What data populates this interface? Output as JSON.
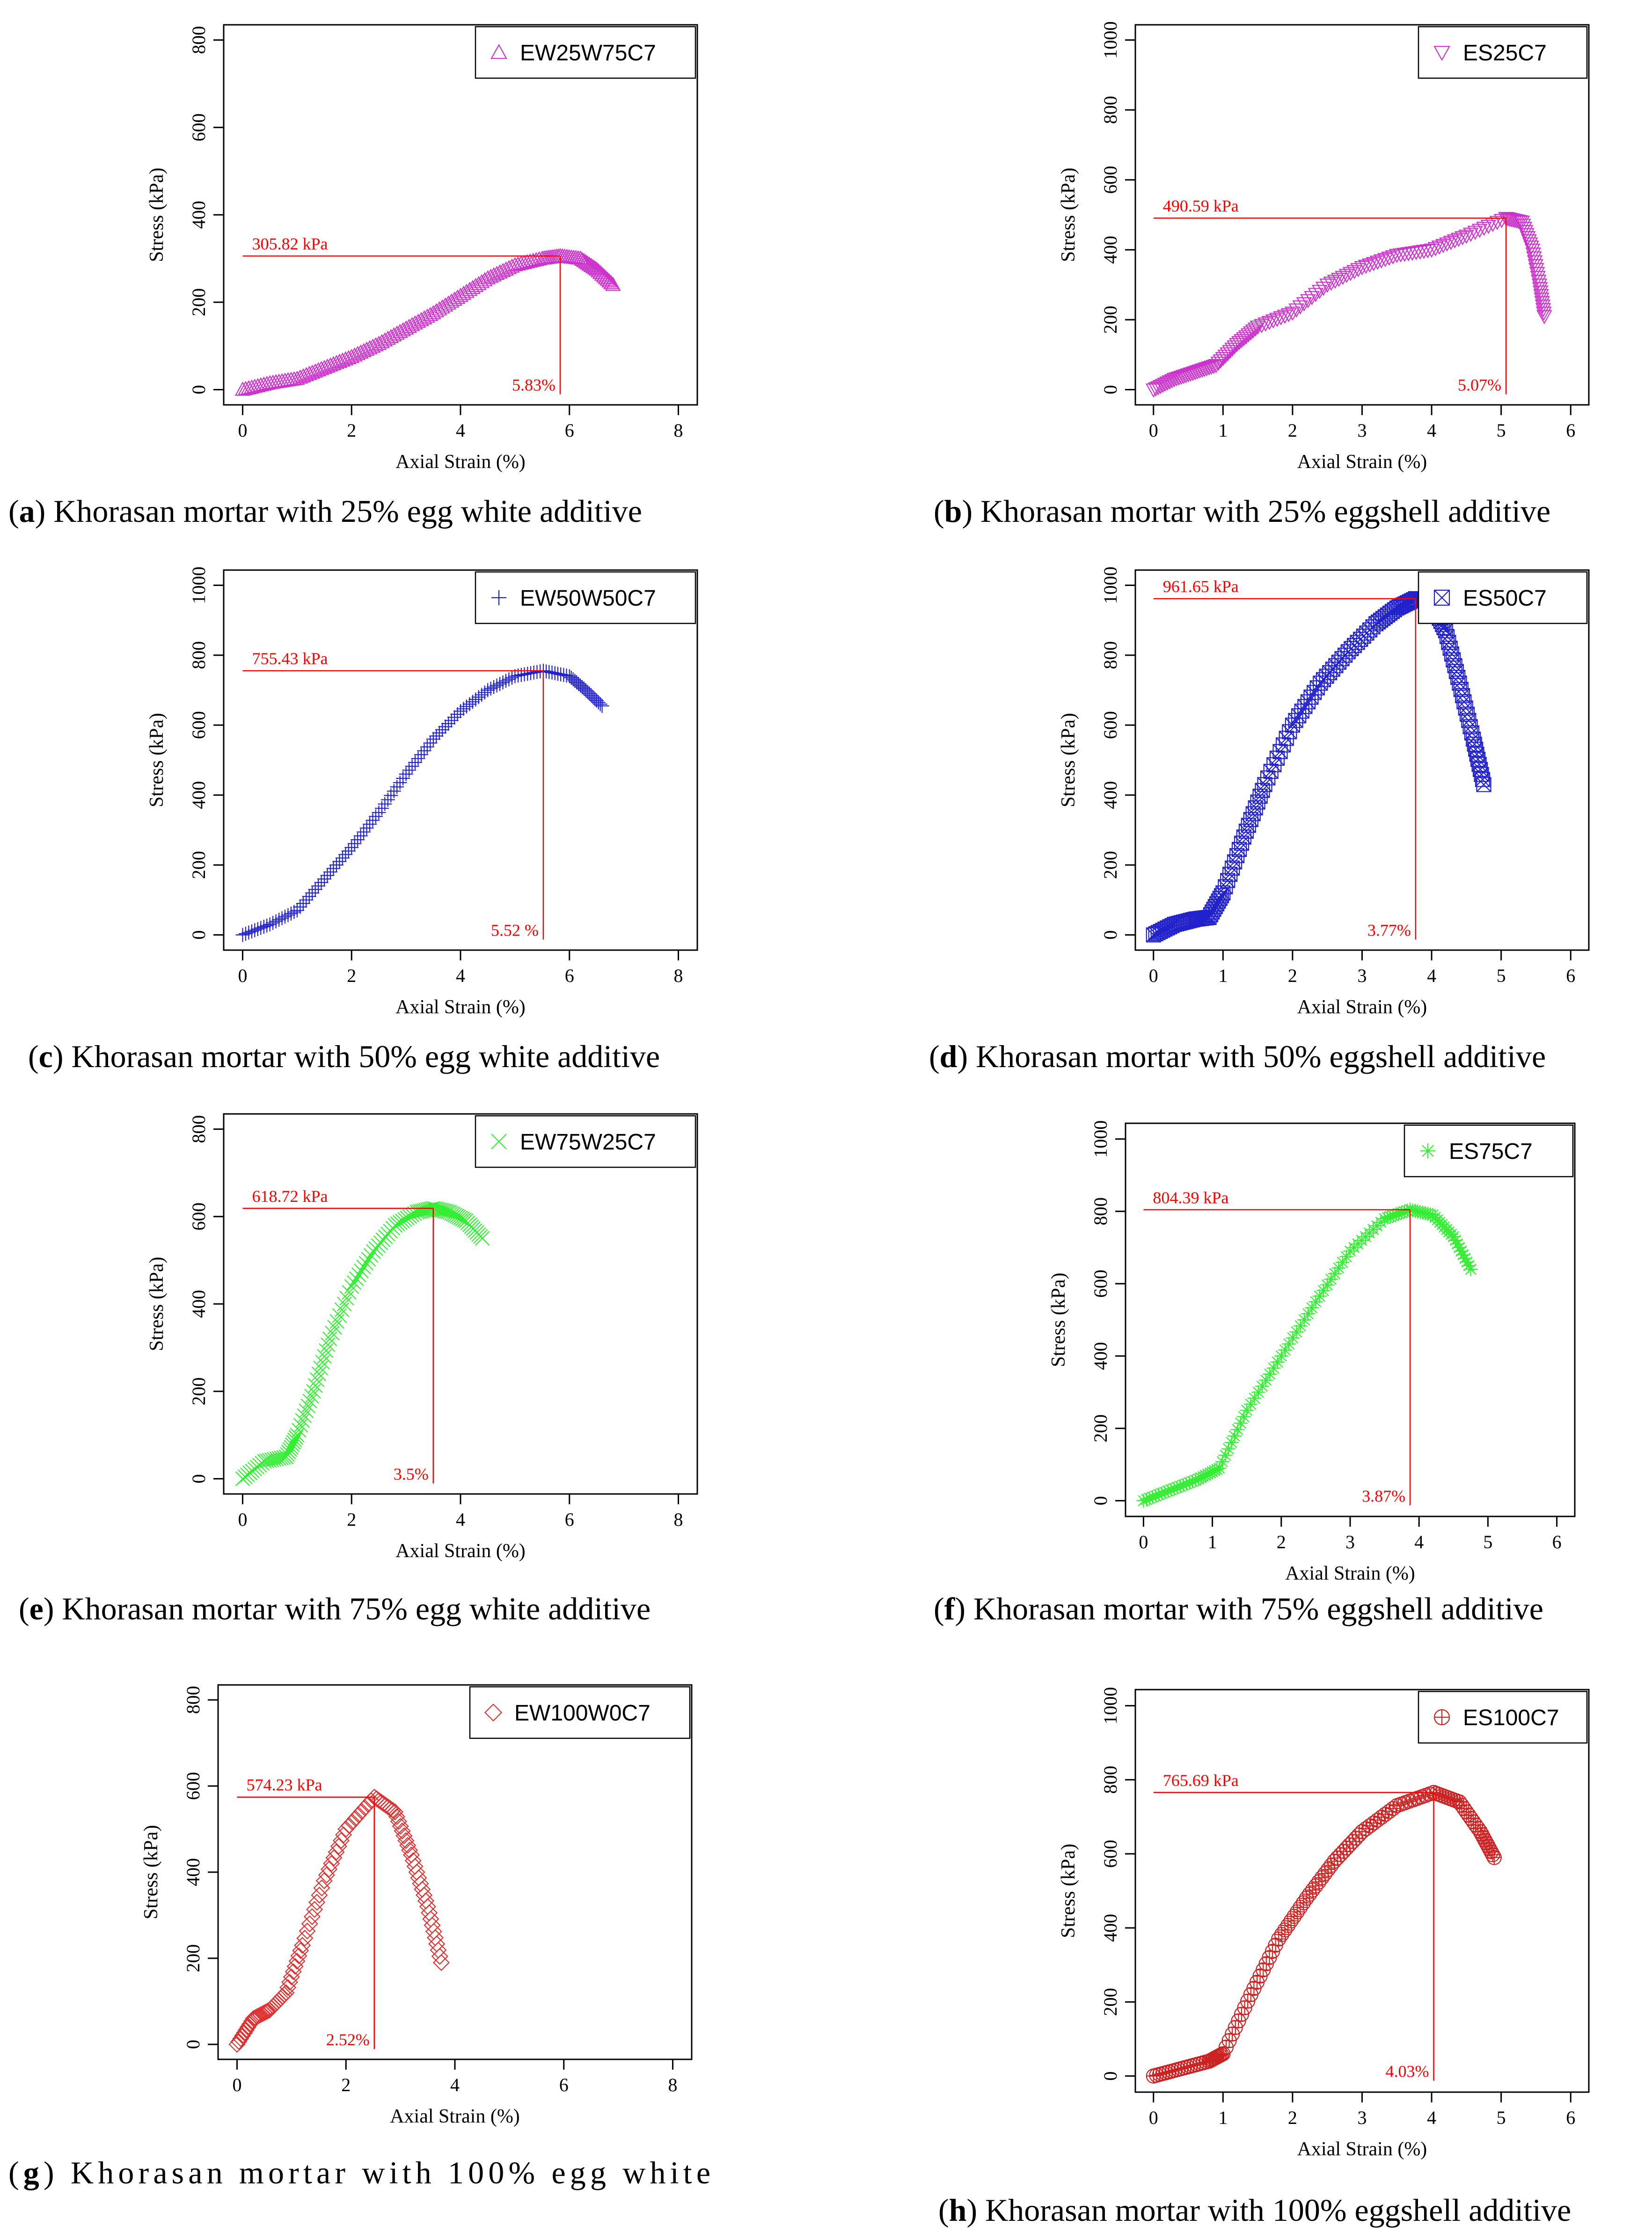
{
  "figure": {
    "panels": [
      {
        "letter": "a",
        "caption": "Khorasan mortar with 25% egg white additive",
        "chart_data": {
          "type": "scatter",
          "title": "",
          "xlabel": "Axial Strain (%)",
          "ylabel": "Stress (kPa)",
          "xlim": [
            0,
            8
          ],
          "ylim": [
            0,
            800
          ],
          "x_ticks": [
            0,
            2,
            4,
            6,
            8
          ],
          "y_ticks": [
            0,
            200,
            400,
            600,
            800
          ],
          "color": "#cc33cc",
          "marker": "triangle-up",
          "legend": "EW25W75C7",
          "legend_position": "top-right",
          "peak": {
            "strain": 5.83,
            "stress": 305.82,
            "stress_label": "305.82 kPa",
            "strain_label": "5.83%"
          },
          "series": [
            {
              "name": "EW25W75C7",
              "x": [
                0,
                0.5,
                1.0,
                1.5,
                2.0,
                2.5,
                3.0,
                3.5,
                4.0,
                4.5,
                5.0,
                5.5,
                5.83,
                6.2,
                6.5,
                6.8
              ],
              "y": [
                0,
                15,
                25,
                50,
                75,
                105,
                140,
                175,
                215,
                255,
                285,
                300,
                305.82,
                300,
                275,
                240
              ]
            }
          ]
        }
      },
      {
        "letter": "b",
        "caption": "Khorasan mortar with 25% eggshell additive",
        "chart_data": {
          "type": "scatter",
          "title": "",
          "xlabel": "Axial Strain (%)",
          "ylabel": "Stress (kPa)",
          "xlim": [
            0,
            6
          ],
          "ylim": [
            0,
            1000
          ],
          "x_ticks": [
            0,
            1,
            2,
            3,
            4,
            5,
            6
          ],
          "y_ticks": [
            0,
            200,
            400,
            600,
            800,
            1000
          ],
          "color": "#cc33cc",
          "marker": "triangle-down",
          "legend": "ES25C7",
          "legend_position": "top-right",
          "peak": {
            "strain": 5.07,
            "stress": 490.59,
            "stress_label": "490.59 kPa",
            "strain_label": "5.07%"
          },
          "series": [
            {
              "name": "ES25C7",
              "x": [
                0,
                0.3,
                0.6,
                0.9,
                1.2,
                1.5,
                2.0,
                2.5,
                3.0,
                3.5,
                4.0,
                4.5,
                5.07,
                5.3,
                5.45,
                5.55,
                5.62
              ],
              "y": [
                0,
                30,
                50,
                70,
                130,
                180,
                220,
                300,
                350,
                385,
                400,
                440,
                490.59,
                480,
                400,
                300,
                210
              ]
            }
          ]
        }
      },
      {
        "letter": "c",
        "caption": "Khorasan mortar with 50% egg white additive",
        "chart_data": {
          "type": "scatter",
          "title": "",
          "xlabel": "Axial Strain (%)",
          "ylabel": "Stress (kPa)",
          "xlim": [
            0,
            8
          ],
          "ylim": [
            0,
            1000
          ],
          "x_ticks": [
            0,
            2,
            4,
            6,
            8
          ],
          "y_ticks": [
            0,
            200,
            400,
            600,
            800,
            1000
          ],
          "color": "#2222cc",
          "marker": "plus",
          "legend": "EW50W50C7",
          "legend_position": "top-right",
          "peak": {
            "strain": 5.52,
            "stress": 755.43,
            "stress_label": "755.43 kPa",
            "strain_label": "5.52 %"
          },
          "series": [
            {
              "name": "EW50W50C7",
              "x": [
                0,
                0.5,
                1.0,
                1.5,
                2.0,
                2.5,
                3.0,
                3.5,
                4.0,
                4.5,
                5.0,
                5.52,
                6.0,
                6.3,
                6.6
              ],
              "y": [
                0,
                30,
                70,
                160,
                250,
                350,
                460,
                560,
                640,
                700,
                740,
                755.43,
                740,
                700,
                655
              ]
            }
          ]
        }
      },
      {
        "letter": "d",
        "caption": "Khorasan mortar with 50% eggshell additive",
        "chart_data": {
          "type": "scatter",
          "title": "",
          "xlabel": "Axial Strain (%)",
          "ylabel": "Stress (kPa)",
          "xlim": [
            0,
            6
          ],
          "ylim": [
            0,
            1000
          ],
          "x_ticks": [
            0,
            1,
            2,
            3,
            4,
            5,
            6
          ],
          "y_ticks": [
            0,
            200,
            400,
            600,
            800,
            1000
          ],
          "color": "#2222cc",
          "marker": "square-cross",
          "legend": "ES50C7",
          "legend_position": "top-right",
          "peak": {
            "strain": 3.77,
            "stress": 961.65,
            "stress_label": "961.65 kPa",
            "strain_label": "3.77%"
          },
          "series": [
            {
              "name": "ES50C7",
              "x": [
                0,
                0.3,
                0.6,
                0.8,
                1.0,
                1.3,
                1.6,
                2.0,
                2.4,
                2.8,
                3.2,
                3.5,
                3.77,
                4.0,
                4.2,
                4.4,
                4.6,
                4.75
              ],
              "y": [
                0,
                30,
                45,
                50,
                120,
                280,
                430,
                600,
                720,
                810,
                890,
                935,
                961.65,
                950,
                870,
                720,
                560,
                430
              ]
            }
          ]
        }
      },
      {
        "letter": "e",
        "caption": "Khorasan mortar with 75% egg white additive",
        "chart_data": {
          "type": "scatter",
          "title": "",
          "xlabel": "Axial Strain (%)",
          "ylabel": "Stress (kPa)",
          "xlim": [
            0,
            8
          ],
          "ylim": [
            0,
            800
          ],
          "x_ticks": [
            0,
            2,
            4,
            6,
            8
          ],
          "y_ticks": [
            0,
            200,
            400,
            600,
            800
          ],
          "color": "#33ee33",
          "marker": "cross",
          "legend": "EW75W25C7",
          "legend_position": "top-right",
          "peak": {
            "strain": 3.5,
            "stress": 618.72,
            "stress_label": "618.72 kPa",
            "strain_label": "3.5%"
          },
          "series": [
            {
              "name": "EW75W25C7",
              "x": [
                0,
                0.4,
                0.8,
                1.0,
                1.3,
                1.6,
                2.0,
                2.4,
                2.8,
                3.2,
                3.5,
                3.8,
                4.1,
                4.4
              ],
              "y": [
                0,
                40,
                50,
                100,
                200,
                320,
                440,
                520,
                580,
                610,
                618.72,
                610,
                590,
                550
              ]
            }
          ]
        }
      },
      {
        "letter": "f",
        "caption": "Khorasan mortar with 75% eggshell additive",
        "chart_data": {
          "type": "scatter",
          "title": "",
          "xlabel": "Axial Strain (%)",
          "ylabel": "Stress (kPa)",
          "xlim": [
            0,
            6
          ],
          "ylim": [
            0,
            1000
          ],
          "x_ticks": [
            0,
            1,
            2,
            3,
            4,
            5,
            6
          ],
          "y_ticks": [
            0,
            200,
            400,
            600,
            800,
            1000
          ],
          "color": "#33ee33",
          "marker": "asterisk",
          "legend": "ES75C7",
          "legend_position": "top-right",
          "peak": {
            "strain": 3.87,
            "stress": 804.39,
            "stress_label": "804.39 kPa",
            "strain_label": "3.87%"
          },
          "series": [
            {
              "name": "ES75C7",
              "x": [
                0,
                0.4,
                0.8,
                1.1,
                1.5,
                2.0,
                2.5,
                3.0,
                3.5,
                3.87,
                4.2,
                4.5,
                4.75
              ],
              "y": [
                0,
                30,
                60,
                90,
                250,
                400,
                550,
                690,
                780,
                804.39,
                790,
                730,
                640
              ]
            }
          ]
        }
      },
      {
        "letter": "g",
        "caption": "Khorasan mortar with 100% egg white",
        "chart_data": {
          "type": "scatter",
          "title": "",
          "xlabel": "Axial Strain (%)",
          "ylabel": "Stress (kPa)",
          "xlim": [
            0,
            8
          ],
          "ylim": [
            0,
            800
          ],
          "x_ticks": [
            0,
            2,
            4,
            6,
            8
          ],
          "y_ticks": [
            0,
            200,
            400,
            600,
            800
          ],
          "color": "#dd3333",
          "marker": "diamond",
          "legend": "EW100W0C7",
          "legend_position": "top-right",
          "peak": {
            "strain": 2.52,
            "stress": 574.23,
            "stress_label": "574.23 kPa",
            "strain_label": "2.52%"
          },
          "series": [
            {
              "name": "EW100W0C7",
              "x": [
                0,
                0.3,
                0.6,
                0.9,
                1.2,
                1.6,
                2.0,
                2.52,
                2.9,
                3.2,
                3.5,
                3.75
              ],
              "y": [
                0,
                60,
                80,
                120,
                230,
                380,
                500,
                574.23,
                540,
                440,
                320,
                190
              ]
            }
          ]
        }
      },
      {
        "letter": "h",
        "caption": "Khorasan mortar with 100% eggshell additive",
        "chart_data": {
          "type": "scatter",
          "title": "",
          "xlabel": "Axial Strain (%)",
          "ylabel": "Stress (kPa)",
          "xlim": [
            0,
            6
          ],
          "ylim": [
            0,
            1000
          ],
          "x_ticks": [
            0,
            1,
            2,
            3,
            4,
            5,
            6
          ],
          "y_ticks": [
            0,
            200,
            400,
            600,
            800,
            1000
          ],
          "color": "#cc2222",
          "marker": "circle-plus",
          "legend": "ES100C7",
          "legend_position": "top-right",
          "peak": {
            "strain": 4.03,
            "stress": 765.69,
            "stress_label": "765.69 kPa",
            "strain_label": "4.03%"
          },
          "series": [
            {
              "name": "ES100C7",
              "x": [
                0,
                0.4,
                0.8,
                1.0,
                1.4,
                1.8,
                2.2,
                2.6,
                3.0,
                3.5,
                4.03,
                4.4,
                4.7,
                4.9
              ],
              "y": [
                0,
                20,
                40,
                60,
                220,
                370,
                480,
                580,
                660,
                730,
                765.69,
                740,
                660,
                590
              ]
            }
          ]
        }
      }
    ]
  }
}
